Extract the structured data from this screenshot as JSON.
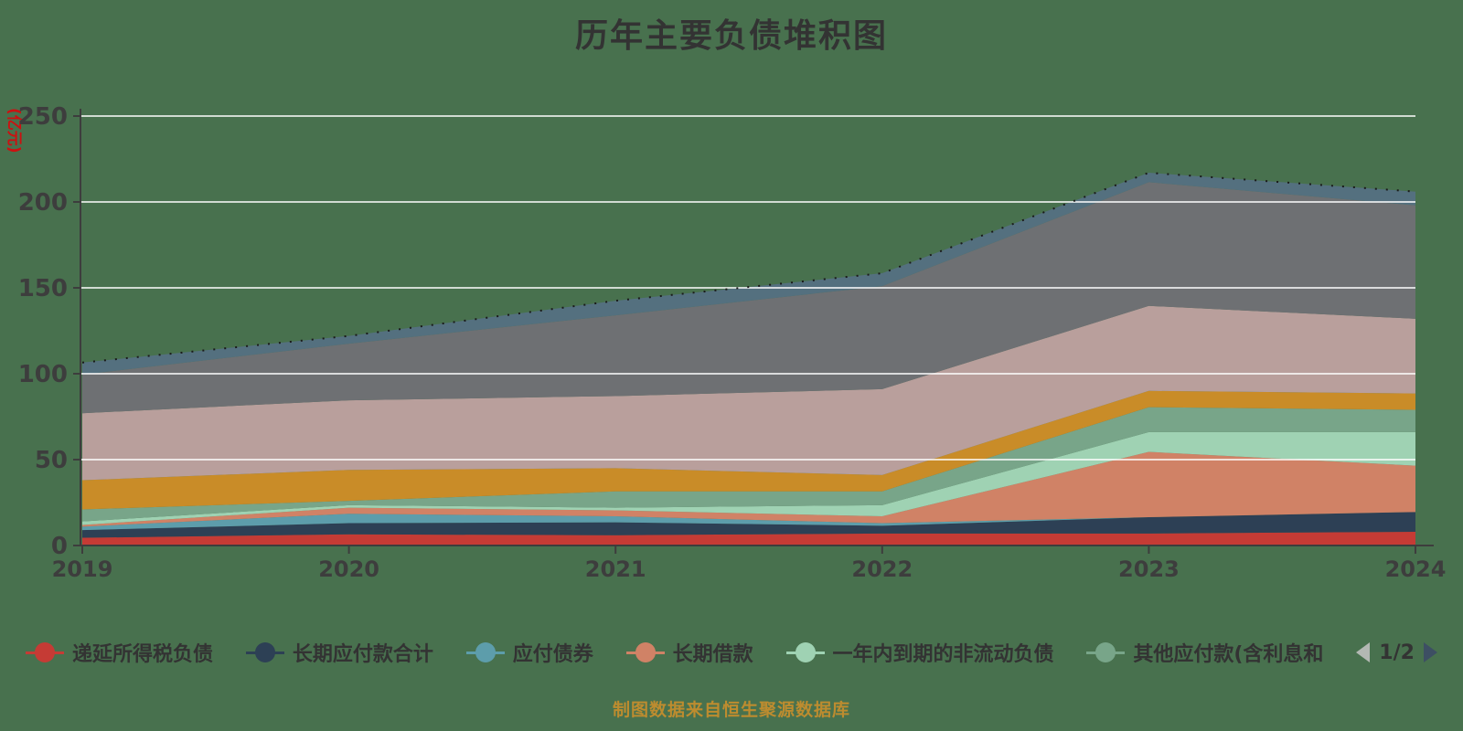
{
  "title": "历年主要负债堆积图",
  "footer": "制图数据来自恒生聚源数据库",
  "colors": {
    "background": "#48714e",
    "title_text": "#333333",
    "axis_line": "#3d3d3d",
    "axis_text": "#3d3d3d",
    "unit_label_text": "#cc1111",
    "grid_line": "rgba(255,255,255,0.75)",
    "top_dotted_line": "#1a1a1a",
    "legend_text": "#333333",
    "footer_text": "#bd8c2f",
    "pager_prev": "#b3b8b3",
    "pager_next": "#3d4f63"
  },
  "y_axis": {
    "unit_label": "(亿元)",
    "ticks": [
      0,
      50,
      100,
      150,
      200,
      250
    ]
  },
  "x_axis": {
    "labels": [
      "2019",
      "2020",
      "2021",
      "2022",
      "2023",
      "2024"
    ]
  },
  "legend": {
    "page_indicator": "1/2",
    "items": [
      {
        "label": "递延所得税负债",
        "color": "#c53b35"
      },
      {
        "label": "长期应付款合计",
        "color": "#2d4055"
      },
      {
        "label": "应付债券",
        "color": "#5d9dab"
      },
      {
        "label": "长期借款",
        "color": "#d08266"
      },
      {
        "label": "一年内到期的非流动负债",
        "color": "#9fd2b3"
      },
      {
        "label": "其他应付款(含利息和",
        "color": "#78a589"
      }
    ]
  },
  "chart_data": {
    "type": "area",
    "stacked": true,
    "title": "历年主要负债堆积图",
    "ylabel": "(亿元)",
    "ylim": [
      0,
      250
    ],
    "grid": true,
    "legend_position": "bottom",
    "x": [
      2019,
      2020,
      2021,
      2022,
      2023,
      2024
    ],
    "series": [
      {
        "id": "series-1",
        "name": "递延所得税负债",
        "color": "#c53b35",
        "values": [
          4.5,
          6.5,
          6,
          7,
          7,
          8
        ]
      },
      {
        "id": "series-2",
        "name": "长期应付款合计",
        "color": "#2d4055",
        "values": [
          4.5,
          6.5,
          7.5,
          4.5,
          9.5,
          11.5
        ]
      },
      {
        "id": "series-3",
        "name": "应付债券",
        "color": "#5d9dab",
        "values": [
          2,
          5.5,
          3.5,
          1.5,
          0,
          0
        ]
      },
      {
        "id": "series-4",
        "name": "长期借款",
        "color": "#d08266",
        "values": [
          1,
          3.5,
          3.5,
          4,
          38,
          27
        ]
      },
      {
        "id": "series-5",
        "name": "一年内到期的非流动负债",
        "color": "#9fd2b3",
        "values": [
          2,
          1.5,
          1.5,
          6.5,
          11.5,
          19.5
        ]
      },
      {
        "id": "series-6",
        "name": "其他应付款(含利息和",
        "color": "#78a589",
        "values": [
          7,
          2.5,
          9.5,
          8,
          14.5,
          13
        ]
      },
      {
        "id": "series-7",
        "name": "",
        "color": "#c98c28",
        "values": [
          17,
          18,
          13.5,
          9.5,
          9.5,
          9.5
        ]
      },
      {
        "id": "series-8",
        "name": "",
        "color": "#b99f9c",
        "values": [
          39,
          40.5,
          42,
          50,
          49.5,
          43.5
        ]
      },
      {
        "id": "series-9",
        "name": "",
        "color": "#6e7073",
        "values": [
          22.5,
          33,
          47,
          60,
          72,
          66
        ]
      },
      {
        "id": "series-10",
        "name": "",
        "color": "#54707f",
        "values": [
          7,
          4.5,
          8.5,
          7.5,
          5.5,
          8
        ]
      }
    ]
  }
}
